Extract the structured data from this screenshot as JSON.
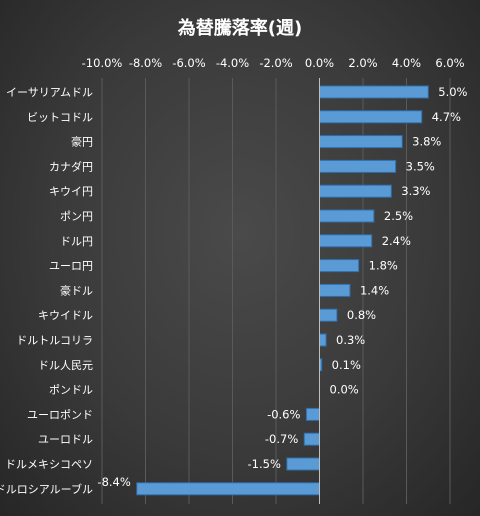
{
  "chart_data": {
    "type": "bar",
    "orientation": "horizontal",
    "title": "為替騰落率(週)",
    "xlabel": "",
    "ylabel": "",
    "xlim": [
      -10,
      6
    ],
    "ticks": [
      -10,
      -8,
      -6,
      -4,
      -2,
      0,
      2,
      4,
      6
    ],
    "tick_labels": [
      "-10.0%",
      "-8.0%",
      "-6.0%",
      "-4.0%",
      "-2.0%",
      "0.0%",
      "2.0%",
      "4.0%",
      "6.0%"
    ],
    "tick_position": "top",
    "grid": true,
    "legend": "none",
    "bar_color": "#5b9bd5",
    "categories": [
      "イーサリアムドル",
      "ビットコドル",
      "豪円",
      "カナダ円",
      "キウイ円",
      "ポン円",
      "ドル円",
      "ユーロ円",
      "豪ドル",
      "キウイドル",
      "ドルトルコリラ",
      "ドル人民元",
      "ポンドル",
      "ユーロポンド",
      "ユーロドル",
      "ドルメキシコペソ",
      "ドルロシアルーブル"
    ],
    "values": [
      5.0,
      4.7,
      3.8,
      3.5,
      3.3,
      2.5,
      2.4,
      1.8,
      1.4,
      0.8,
      0.3,
      0.1,
      0.0,
      -0.6,
      -0.7,
      -1.5,
      -8.4
    ],
    "data_labels": [
      "5.0%",
      "4.7%",
      "3.8%",
      "3.5%",
      "3.3%",
      "2.5%",
      "2.4%",
      "1.8%",
      "1.4%",
      "0.8%",
      "0.3%",
      "0.1%",
      "0.0%",
      "-0.6%",
      "-0.7%",
      "-1.5%",
      "-8.4%"
    ]
  }
}
